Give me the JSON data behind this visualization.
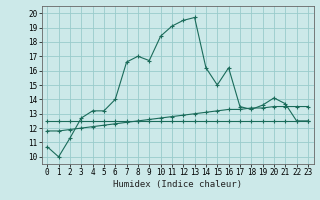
{
  "xlabel": "Humidex (Indice chaleur)",
  "xlim": [
    -0.5,
    23.5
  ],
  "ylim": [
    9.5,
    20.5
  ],
  "yticks": [
    10,
    11,
    12,
    13,
    14,
    15,
    16,
    17,
    18,
    19,
    20
  ],
  "xticks": [
    0,
    1,
    2,
    3,
    4,
    5,
    6,
    7,
    8,
    9,
    10,
    11,
    12,
    13,
    14,
    15,
    16,
    17,
    18,
    19,
    20,
    21,
    22,
    23
  ],
  "background_color": "#cce9e9",
  "grid_color": "#99cccc",
  "line_color": "#1a6b5a",
  "line1_x": [
    0,
    1,
    2,
    3,
    4,
    5,
    6,
    7,
    8,
    9,
    10,
    11,
    12,
    13,
    14,
    15,
    16,
    17,
    18,
    19,
    20,
    21,
    22,
    23
  ],
  "line1_y": [
    10.7,
    10.0,
    11.3,
    12.7,
    13.2,
    13.2,
    14.0,
    16.6,
    17.0,
    16.7,
    18.4,
    19.1,
    19.5,
    19.7,
    16.2,
    15.0,
    16.2,
    13.5,
    13.3,
    13.6,
    14.1,
    13.7,
    12.5,
    12.5
  ],
  "line2_x": [
    0,
    1,
    2,
    3,
    4,
    5,
    6,
    7,
    8,
    9,
    10,
    11,
    12,
    13,
    14,
    15,
    16,
    17,
    18,
    19,
    20,
    21,
    22,
    23
  ],
  "line2_y": [
    12.5,
    12.5,
    12.5,
    12.5,
    12.5,
    12.5,
    12.5,
    12.5,
    12.5,
    12.5,
    12.5,
    12.5,
    12.5,
    12.5,
    12.5,
    12.5,
    12.5,
    12.5,
    12.5,
    12.5,
    12.5,
    12.5,
    12.5,
    12.5
  ],
  "line3_x": [
    0,
    1,
    2,
    3,
    4,
    5,
    6,
    7,
    8,
    9,
    10,
    11,
    12,
    13,
    14,
    15,
    16,
    17,
    18,
    19,
    20,
    21,
    22,
    23
  ],
  "line3_y": [
    11.8,
    11.8,
    11.9,
    12.0,
    12.1,
    12.2,
    12.3,
    12.4,
    12.5,
    12.6,
    12.7,
    12.8,
    12.9,
    13.0,
    13.1,
    13.2,
    13.3,
    13.3,
    13.4,
    13.4,
    13.5,
    13.5,
    13.5,
    13.5
  ]
}
